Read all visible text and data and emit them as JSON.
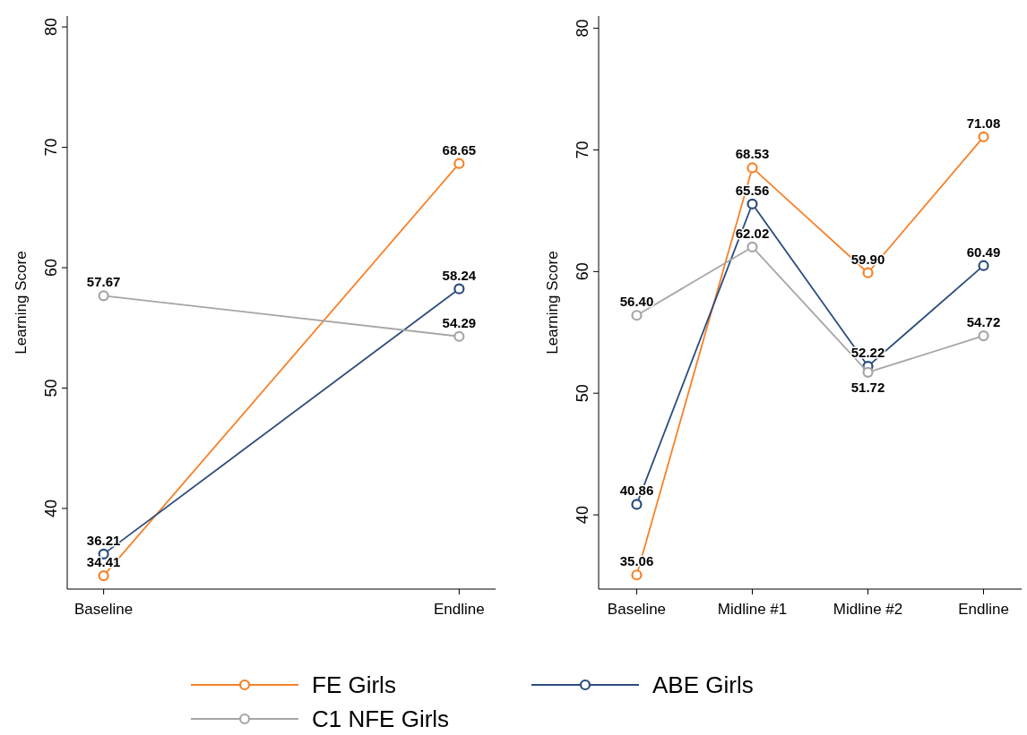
{
  "chart_data": [
    {
      "type": "line",
      "categories": [
        "Baseline",
        "Endline"
      ],
      "ylabel": "Learning Score",
      "ylim": [
        33.3,
        80.9
      ],
      "yticks": [
        40,
        50,
        60,
        70,
        80
      ],
      "marker": "circle",
      "line_style": "solid",
      "grid": false,
      "legend": "bottom",
      "series": [
        {
          "name": "FE Girls",
          "color": "#f5822a",
          "values": [
            34.41,
            68.65
          ],
          "value_labels": [
            "34.41",
            "68.65"
          ]
        },
        {
          "name": "ABE Girls",
          "color": "#2b4c7e",
          "values": [
            36.21,
            58.24
          ],
          "value_labels": [
            "36.21",
            "58.24"
          ]
        },
        {
          "name": "C1 NFE Girls",
          "color": "#a6a6a6",
          "values": [
            57.67,
            54.29
          ],
          "value_labels": [
            "57.67",
            "54.29"
          ]
        }
      ]
    },
    {
      "type": "line",
      "categories": [
        "Baseline",
        "Midline #1",
        "Midline #2",
        "Endline"
      ],
      "ylabel": "Learning Score",
      "ylim": [
        33.9,
        81
      ],
      "yticks": [
        40,
        50,
        60,
        70,
        80
      ],
      "marker": "circle",
      "line_style": "solid",
      "grid": false,
      "series": [
        {
          "color": "#f5822a",
          "values": [
            35.06,
            68.53,
            59.9,
            71.08
          ],
          "value_labels": [
            "35.06",
            "68.53",
            "59.90",
            "71.08"
          ]
        },
        {
          "color": "#2b4c7e",
          "values": [
            40.86,
            65.56,
            52.22,
            60.49
          ],
          "value_labels": [
            "40.86",
            "65.56",
            "52.22",
            "60.49"
          ]
        },
        {
          "color": "#a6a6a6",
          "values": [
            56.4,
            62.02,
            51.72,
            54.72
          ],
          "value_labels": [
            "56.40",
            "62.02",
            "51.72",
            "54.72"
          ]
        }
      ]
    }
  ]
}
